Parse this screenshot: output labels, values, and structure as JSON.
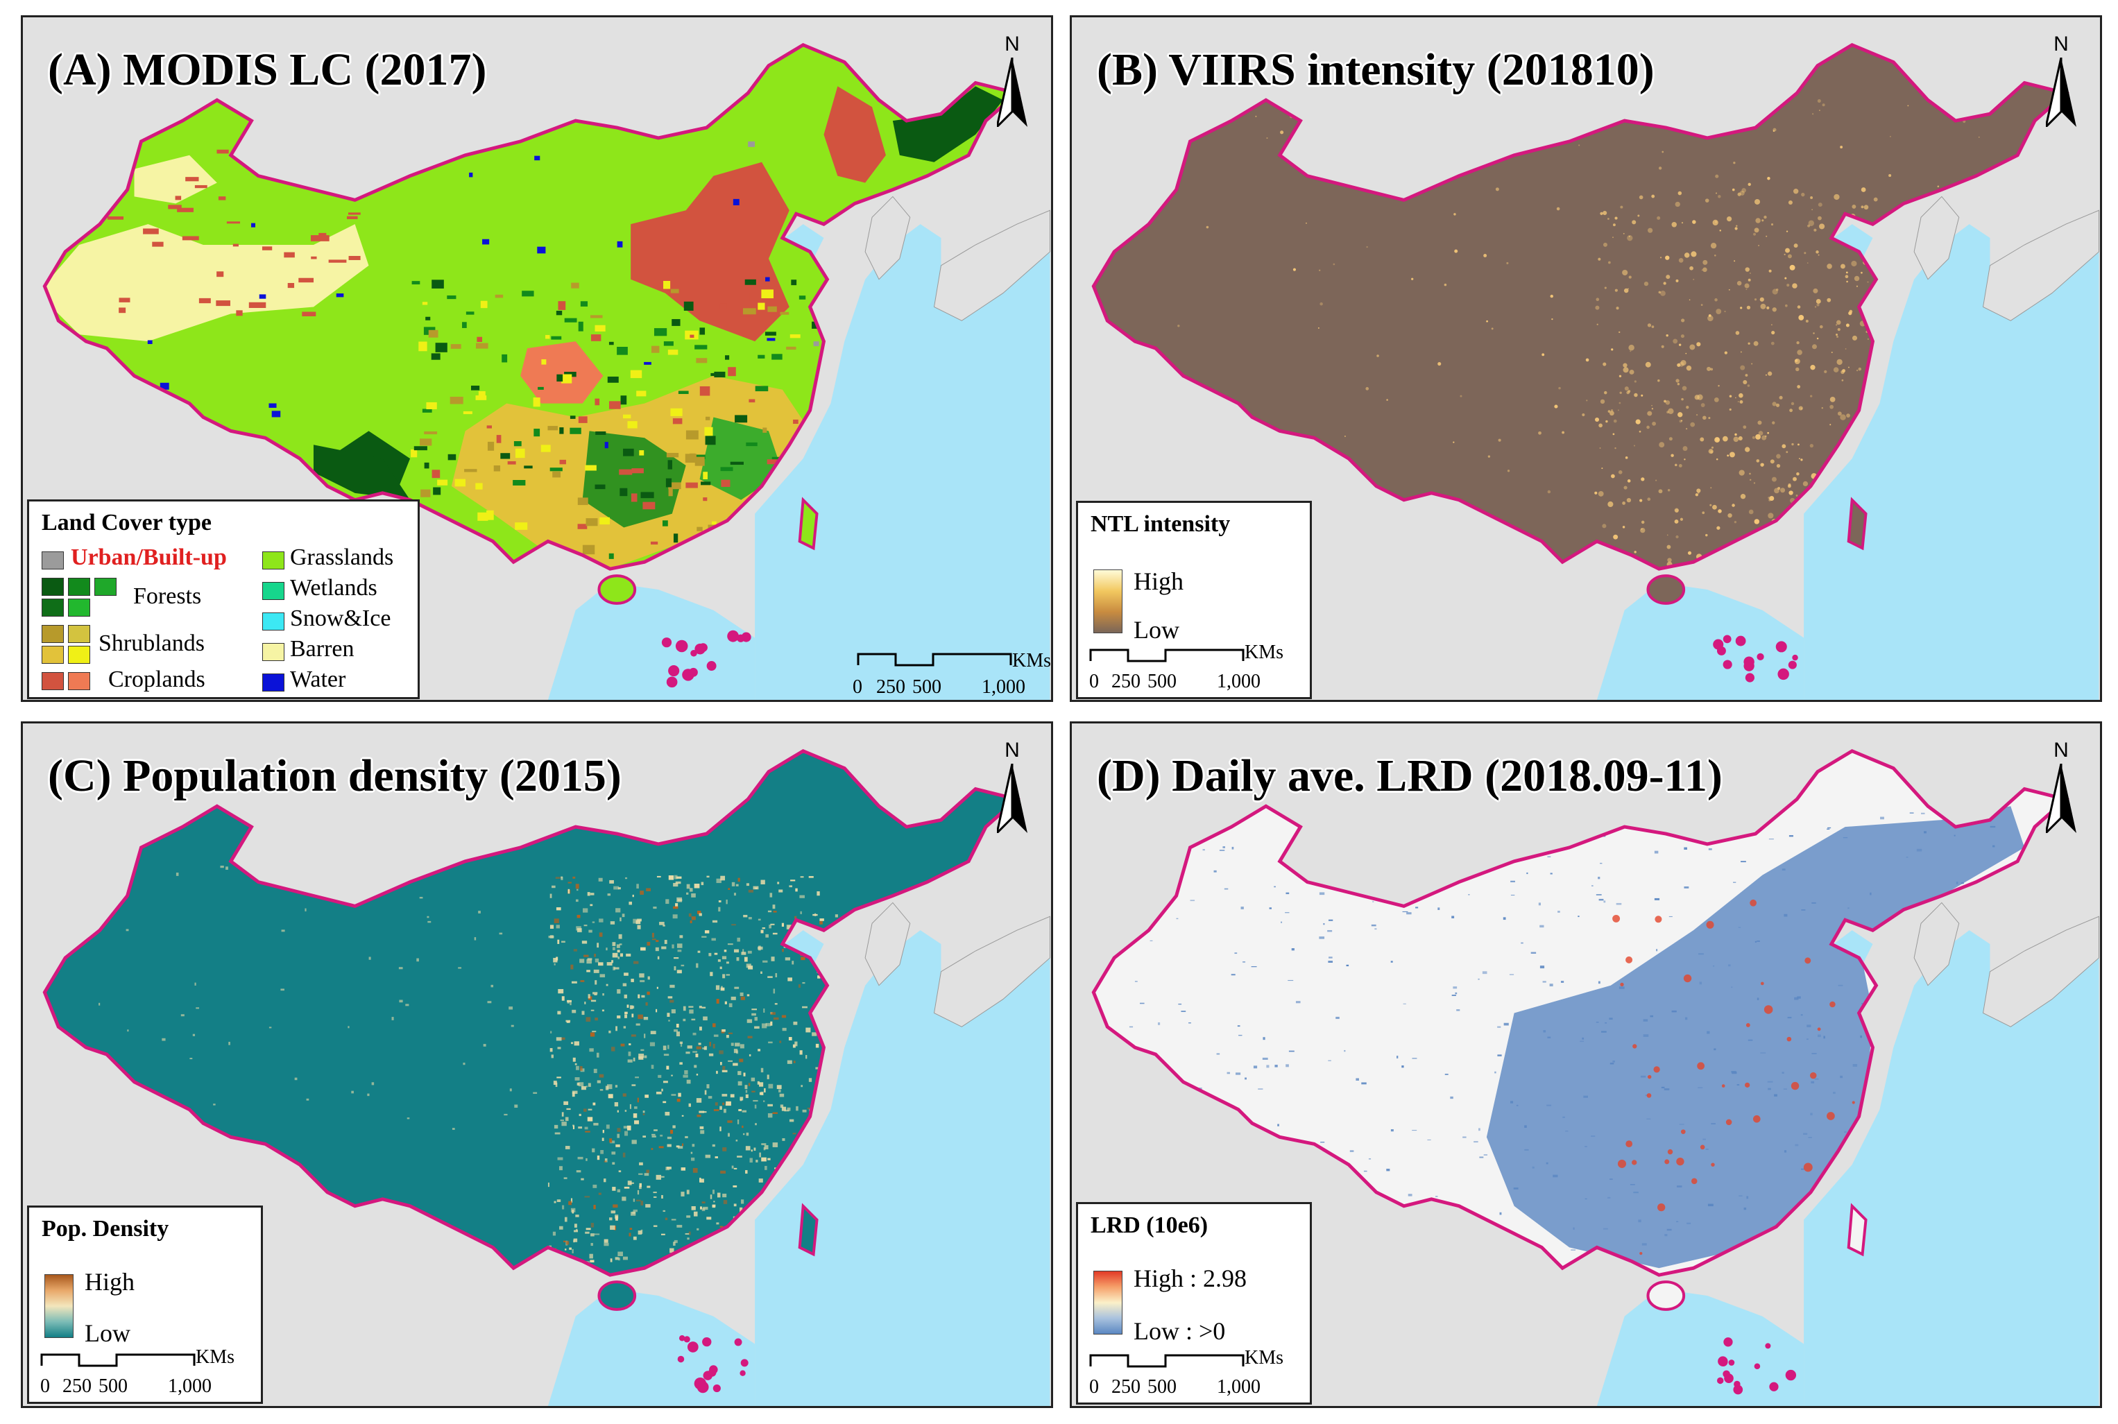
{
  "colors": {
    "bg_land": "#e1e1e1",
    "sea": "#a9e4f8",
    "border": "#d4187e",
    "urban": "#9b9b9b",
    "forest_dark": "#0a5a12",
    "forest_mid": "#128a1c",
    "forest_light": "#1fa82a",
    "shrub_1": "#b79a2b",
    "shrub_2": "#d3c33f",
    "shrub_3": "#e2c23a",
    "shrub_4": "#f0f016",
    "crop_1": "#d2533f",
    "crop_2": "#ef7a54",
    "grass": "#8ee61a",
    "wetland": "#16d68c",
    "snowice": "#3ce8f4",
    "barren": "#f6f4a4",
    "water": "#0a12d8",
    "viirs_base": "#7d6659",
    "viirs_light": "#f5c778",
    "pop_base": "#137f86",
    "pop_mid": "#eadca8",
    "pop_high": "#b8621d",
    "lrd_low": "#5b87c2",
    "lrd_high": "#e3452a"
  },
  "panels": [
    {
      "id": "A",
      "title": "(A) MODIS LC (2017)",
      "legend": {
        "title": "Land Cover type",
        "items": [
          {
            "label": "Urban/Built-up",
            "swatches": [
              "#9b9b9b"
            ],
            "highlight": true
          },
          {
            "label": "Forests",
            "swatches": [
              "#0a5a12",
              "#128a1c",
              "#1fa82a",
              "#0f6e18",
              "#22b82e"
            ]
          },
          {
            "label": "Shrublands",
            "swatches": [
              "#b79a2b",
              "#d3c33f",
              "#e2c23a",
              "#f0f016"
            ]
          },
          {
            "label": "Croplands",
            "swatches": [
              "#d2533f",
              "#ef7a54"
            ]
          },
          {
            "label": "Grasslands",
            "swatches": [
              "#8ee61a"
            ]
          },
          {
            "label": "Wetlands",
            "swatches": [
              "#16d68c"
            ]
          },
          {
            "label": "Snow&Ice",
            "swatches": [
              "#3ce8f4"
            ]
          },
          {
            "label": "Barren",
            "swatches": [
              "#f6f4a4"
            ]
          },
          {
            "label": "Water",
            "swatches": [
              "#0a12d8"
            ]
          }
        ]
      },
      "scalebar": {
        "ticks": [
          "0",
          "250",
          "500",
          "1,000"
        ],
        "unit": "KMs"
      },
      "north": "N"
    },
    {
      "id": "B",
      "title": "(B) VIIRS intensity (201810)",
      "legend": {
        "title": "NTL intensity",
        "high": "High",
        "low": "Low"
      },
      "scalebar": {
        "ticks": [
          "0",
          "250",
          "500",
          "1,000"
        ],
        "unit": "KMs"
      },
      "north": "N"
    },
    {
      "id": "C",
      "title": "(C) Population density (2015)",
      "legend": {
        "title": "Pop. Density",
        "high": "High",
        "low": "Low"
      },
      "scalebar": {
        "ticks": [
          "0",
          "250",
          "500",
          "1,000"
        ],
        "unit": "KMs"
      },
      "north": "N"
    },
    {
      "id": "D",
      "title": "(D) Daily ave. LRD (2018.09-11)",
      "legend": {
        "title": "LRD (10e6)",
        "high": "High : 2.98",
        "low": "Low : >0"
      },
      "scalebar": {
        "ticks": [
          "0",
          "250",
          "500",
          "1,000"
        ],
        "unit": "KMs"
      },
      "north": "N"
    }
  ]
}
